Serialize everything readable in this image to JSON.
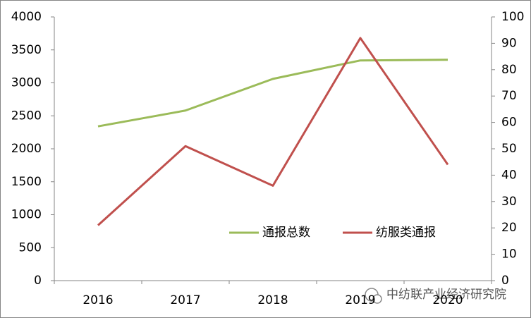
{
  "chart_data": {
    "type": "line",
    "categories": [
      "2016",
      "2017",
      "2018",
      "2019",
      "2020"
    ],
    "series": [
      {
        "name": "通报总数",
        "color": "#9bbb59",
        "values": [
          2340,
          2580,
          3060,
          3340,
          3350
        ]
      },
      {
        "name": "纺服类通报",
        "color": "#c0504d",
        "axis": "y2",
        "values": [
          21,
          51,
          36,
          92,
          44
        ]
      }
    ],
    "ylim": [
      0,
      4000
    ],
    "yticks": [
      0,
      500,
      1000,
      1500,
      2000,
      2500,
      3000,
      3500,
      4000
    ],
    "y2lim": [
      0,
      100
    ],
    "y2ticks": [
      0,
      10,
      20,
      30,
      40,
      50,
      60,
      70,
      80,
      90,
      100
    ],
    "grid": false,
    "legend": "lower right",
    "watermark": "中纺联产业经济研究院"
  }
}
